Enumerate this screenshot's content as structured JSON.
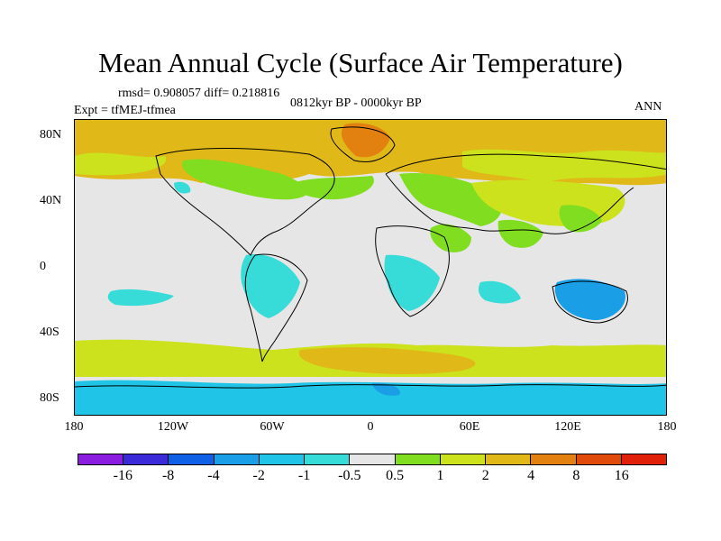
{
  "title": "Mean Annual Cycle (Surface Air Temperature)",
  "stats": {
    "rmsd_diff": "rmsd= 0.908057 diff= 0.218816",
    "experiment": "Expt = tfMEJ-tfmea",
    "period": "0812kyr BP - 0000kyr BP",
    "season": "ANN"
  },
  "map": {
    "projection": "cylindrical equidistant",
    "lon_range": [
      -180,
      180
    ],
    "lat_range": [
      -90,
      90
    ],
    "lat_labels": [
      "80N",
      "40N",
      "0",
      "40S",
      "80S"
    ],
    "lon_labels": [
      "180",
      "120W",
      "60W",
      "0",
      "60E",
      "120E",
      "180"
    ]
  },
  "colorbar": {
    "labels": [
      "-16",
      "-8",
      "-4",
      "-2",
      "-1",
      "-0.5",
      "0.5",
      "1",
      "2",
      "4",
      "8",
      "16"
    ],
    "colors": [
      "#8a1de0",
      "#3a2ad8",
      "#1060e6",
      "#1a9ee6",
      "#20c4e6",
      "#37dbd8",
      "#e6e6e6",
      "#80dd20",
      "#cce21c",
      "#e0b818",
      "#e28010",
      "#e04a0a",
      "#e02008"
    ]
  },
  "chart_data": {
    "type": "heatmap",
    "title": "Mean Annual Cycle (Surface Air Temperature)",
    "variable": "Surface Air Temperature difference",
    "experiment": "tfMEJ-tfmea",
    "period": "0812kyr BP - 0000kyr BP",
    "season": "ANN",
    "rmsd": 0.908057,
    "diff": 0.218816,
    "contour_levels": [
      -16,
      -8,
      -4,
      -2,
      -1,
      -0.5,
      0.5,
      1,
      2,
      4,
      8,
      16
    ],
    "xlabel": "",
    "ylabel": "",
    "x_ticks": [
      "180",
      "120W",
      "60W",
      "0",
      "60E",
      "120E",
      "180"
    ],
    "y_ticks": [
      "80N",
      "40N",
      "0",
      "40S",
      "80S"
    ]
  }
}
